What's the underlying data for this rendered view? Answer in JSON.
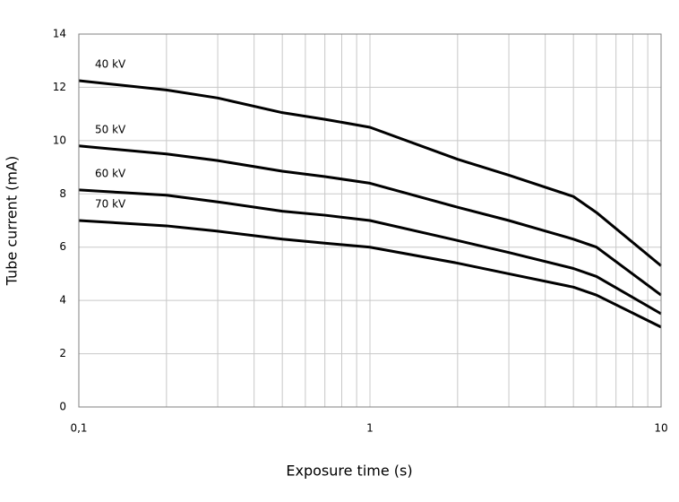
{
  "chart_data": {
    "type": "line",
    "xlabel": "Exposure time (s)",
    "ylabel": "Tube current (mA)",
    "x_scale": "log",
    "xlim": [
      0.1,
      10
    ],
    "xticks": [
      {
        "value": 0.1,
        "label": "0,1"
      },
      1,
      10
    ],
    "x_minor_ticks": [
      0.2,
      0.3,
      0.4,
      0.5,
      0.6,
      0.7,
      0.8,
      0.9,
      2,
      3,
      4,
      5,
      6,
      7,
      8,
      9
    ],
    "ylim": [
      0,
      14
    ],
    "yticks": [
      0,
      2,
      4,
      6,
      8,
      10,
      12,
      14
    ],
    "grid": true,
    "x": [
      0.1,
      0.2,
      0.3,
      0.5,
      0.7,
      1,
      2,
      3,
      5,
      6,
      10
    ],
    "series": [
      {
        "name": "40 kV",
        "color": "#000000",
        "values": [
          12.25,
          11.9,
          11.6,
          11.05,
          10.8,
          10.5,
          9.3,
          8.7,
          7.9,
          7.3,
          5.3
        ]
      },
      {
        "name": "50 kV",
        "color": "#000000",
        "values": [
          9.8,
          9.5,
          9.25,
          8.85,
          8.65,
          8.4,
          7.5,
          7.0,
          6.3,
          6.0,
          4.2
        ]
      },
      {
        "name": "60 kV",
        "color": "#000000",
        "values": [
          8.15,
          7.95,
          7.7,
          7.35,
          7.2,
          7.0,
          6.25,
          5.8,
          5.2,
          4.9,
          3.5
        ]
      },
      {
        "name": "70 kV",
        "color": "#000000",
        "values": [
          7.0,
          6.8,
          6.6,
          6.3,
          6.15,
          6.0,
          5.4,
          5.0,
          4.5,
          4.2,
          3.0
        ]
      }
    ]
  }
}
